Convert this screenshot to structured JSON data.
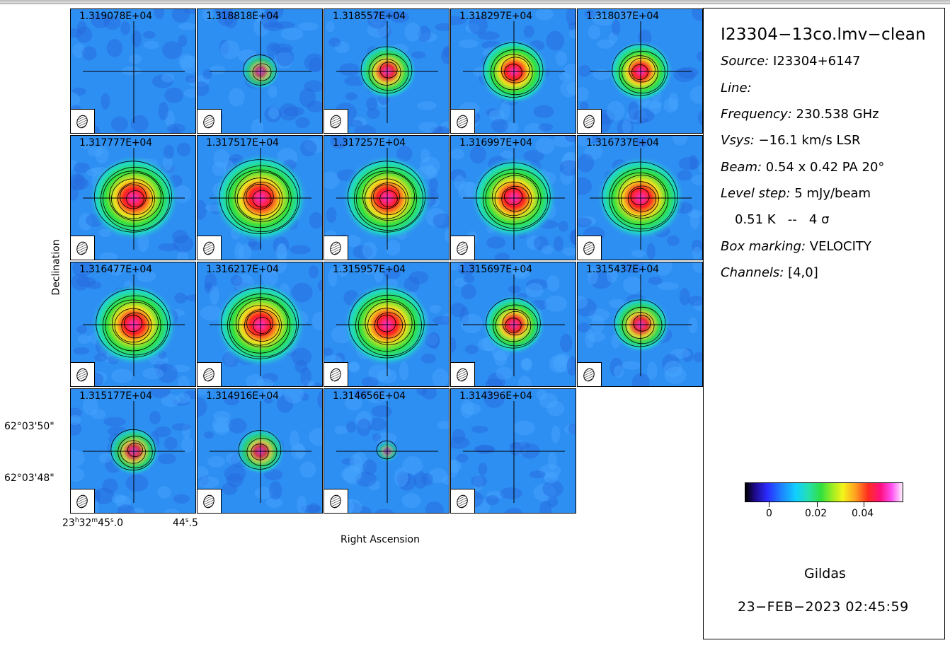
{
  "panels": [
    {
      "label": "1.319078E+04",
      "amp": 0.02
    },
    {
      "label": "1.318818E+04",
      "amp": 0.28
    },
    {
      "label": "1.318557E+04",
      "amp": 0.55
    },
    {
      "label": "1.318297E+04",
      "amp": 0.68
    },
    {
      "label": "1.318037E+04",
      "amp": 0.62
    },
    {
      "label": "1.317777E+04",
      "amp": 0.95
    },
    {
      "label": "1.317517E+04",
      "amp": 1.0
    },
    {
      "label": "1.317257E+04",
      "amp": 0.95
    },
    {
      "label": "1.316997E+04",
      "amp": 0.9
    },
    {
      "label": "1.316737E+04",
      "amp": 0.92
    },
    {
      "label": "1.316477E+04",
      "amp": 0.9
    },
    {
      "label": "1.316217E+04",
      "amp": 0.95
    },
    {
      "label": "1.315957E+04",
      "amp": 0.92
    },
    {
      "label": "1.315697E+04",
      "amp": 0.6
    },
    {
      "label": "1.315437E+04",
      "amp": 0.55
    },
    {
      "label": "1.315177E+04",
      "amp": 0.45
    },
    {
      "label": "1.314916E+04",
      "amp": 0.42
    },
    {
      "label": "1.314656E+04",
      "amp": 0.08
    },
    {
      "label": "1.314396E+04",
      "amp": 0.02
    }
  ],
  "axes": {
    "ylabel": "Declination",
    "xlabel": "Right Ascension",
    "y_ticks": [
      "62°03'50\"",
      "62°03'48\""
    ],
    "x_tick_left": "23h32m45s.0",
    "x_tick_left_parts": {
      "h": "23",
      "m": "32",
      "s": "45",
      "frac": ".0"
    },
    "x_tick_right_parts": {
      "s": "44",
      "frac": ".5"
    }
  },
  "info": {
    "title": "I23304−13co.lmv−clean",
    "source_key": "Source:",
    "source_val": "I23304+6147",
    "line_key": "Line:",
    "line_val": "",
    "freq_key": "Frequency:",
    "freq_val": "230.538 GHz",
    "vsys_key": "Vsys:",
    "vsys_val": "−16.1 km/s LSR",
    "beam_key": "Beam:",
    "beam_val": "0.54 x 0.42 PA 20°",
    "level_key": "Level step:",
    "level_val": "5 mJy/beam",
    "level_line2": "0.51 K   --   4 σ",
    "box_key": "Box marking:",
    "box_val": "VELOCITY",
    "chan_key": "Channels:",
    "chan_val": "[4,0]"
  },
  "colorbar": {
    "labels": [
      "0",
      "0.02",
      "0.04"
    ]
  },
  "footer": {
    "software": "Gildas",
    "timestamp": "23−FEB−2023 02:45:59"
  }
}
